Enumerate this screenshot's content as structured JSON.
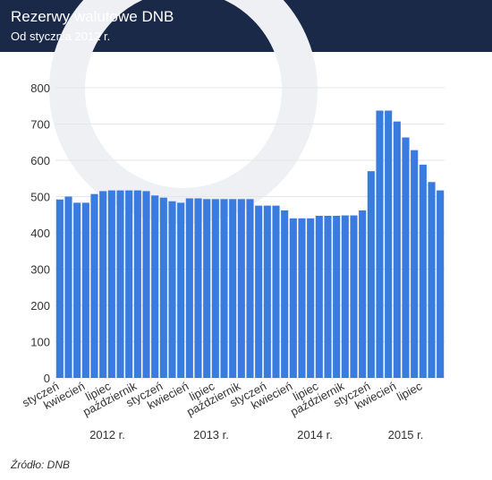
{
  "chart_data": {
    "type": "bar",
    "title": "Rezerwy walutowe DNB",
    "subtitle": "Od stycznia 2012 r.",
    "categories": [
      "styczeń",
      null,
      null,
      "kwiecień",
      null,
      null,
      "lipiec",
      null,
      null,
      "październik",
      null,
      null,
      "styczeń",
      null,
      null,
      "kwiecień",
      null,
      null,
      "lipiec",
      null,
      null,
      "październik",
      null,
      null,
      "styczeń",
      null,
      null,
      "kwiecień",
      null,
      null,
      "lipiec",
      null,
      null,
      "październik",
      null,
      null,
      "styczeń",
      null,
      null,
      "kwiecień",
      null,
      null,
      "lipiec",
      null,
      null
    ],
    "values": [
      492,
      500,
      483,
      483,
      507,
      515,
      517,
      517,
      517,
      517,
      515,
      503,
      497,
      487,
      483,
      495,
      495,
      493,
      493,
      493,
      493,
      493,
      493,
      475,
      475,
      475,
      462,
      440,
      440,
      440,
      447,
      447,
      447,
      448,
      448,
      462,
      570,
      737,
      737,
      707,
      663,
      628,
      588,
      540,
      517
    ],
    "years": [
      "2012 r.",
      "2013 r.",
      "2014 r.",
      "2015 r."
    ],
    "color": "#3a7be0",
    "ylim": [
      0,
      800
    ],
    "yticks": [
      0,
      100,
      200,
      300,
      400,
      500,
      600,
      700,
      800
    ],
    "grid": true,
    "source": "Źródło: DNB"
  }
}
